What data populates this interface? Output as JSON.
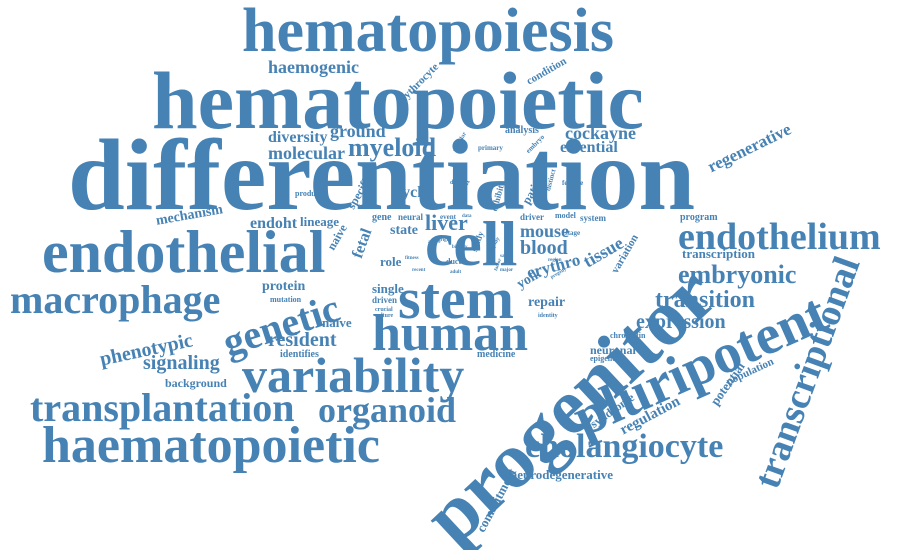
{
  "color": "#4682b4",
  "words": [
    "hematopoiesis",
    "hematopoietic",
    "differentiation",
    "endothelial",
    "cell",
    "progenitor",
    "pluripotent",
    "stem",
    "human",
    "variability",
    "haematopoietic",
    "transplantation",
    "organoid",
    "macrophage",
    "genetic",
    "endothelium",
    "transcriptional",
    "cholangiocyte",
    "embryonic",
    "transition",
    "expression",
    "haemogenic",
    "erythrocyte",
    "condition",
    "regenerative",
    "diversity",
    "ground",
    "molecular",
    "myeloid",
    "analysis",
    "cockayne",
    "essential",
    "vascular",
    "primary",
    "embryo",
    "mechanism",
    "endoht",
    "produce",
    "specific",
    "cycle",
    "defect",
    "result",
    "level",
    "exhibit",
    "patient",
    "distinct",
    "feature",
    "lineage",
    "naive",
    "fetal",
    "role",
    "gene",
    "neural",
    "state",
    "liver",
    "event",
    "data",
    "driver",
    "model",
    "system",
    "program",
    "mouse",
    "blood",
    "tissue",
    "erythro",
    "yolk",
    "stage",
    "variation",
    "transcription",
    "protein",
    "mutation",
    "single",
    "driven",
    "crucial",
    "culture",
    "repair",
    "identity",
    "phenotypic",
    "resident",
    "naïve",
    "signaling",
    "identifies",
    "background",
    "medicine",
    "neuronal",
    "chromatin",
    "epigenetic",
    "population",
    "potential",
    "regulation",
    "syndrome",
    "commitment",
    "neurodegenerative",
    "origin",
    "duct",
    "adult",
    "recent",
    "study",
    "display",
    "factor",
    "major",
    "region",
    "progeny",
    "fitness",
    "sac",
    "active",
    "biology"
  ]
}
